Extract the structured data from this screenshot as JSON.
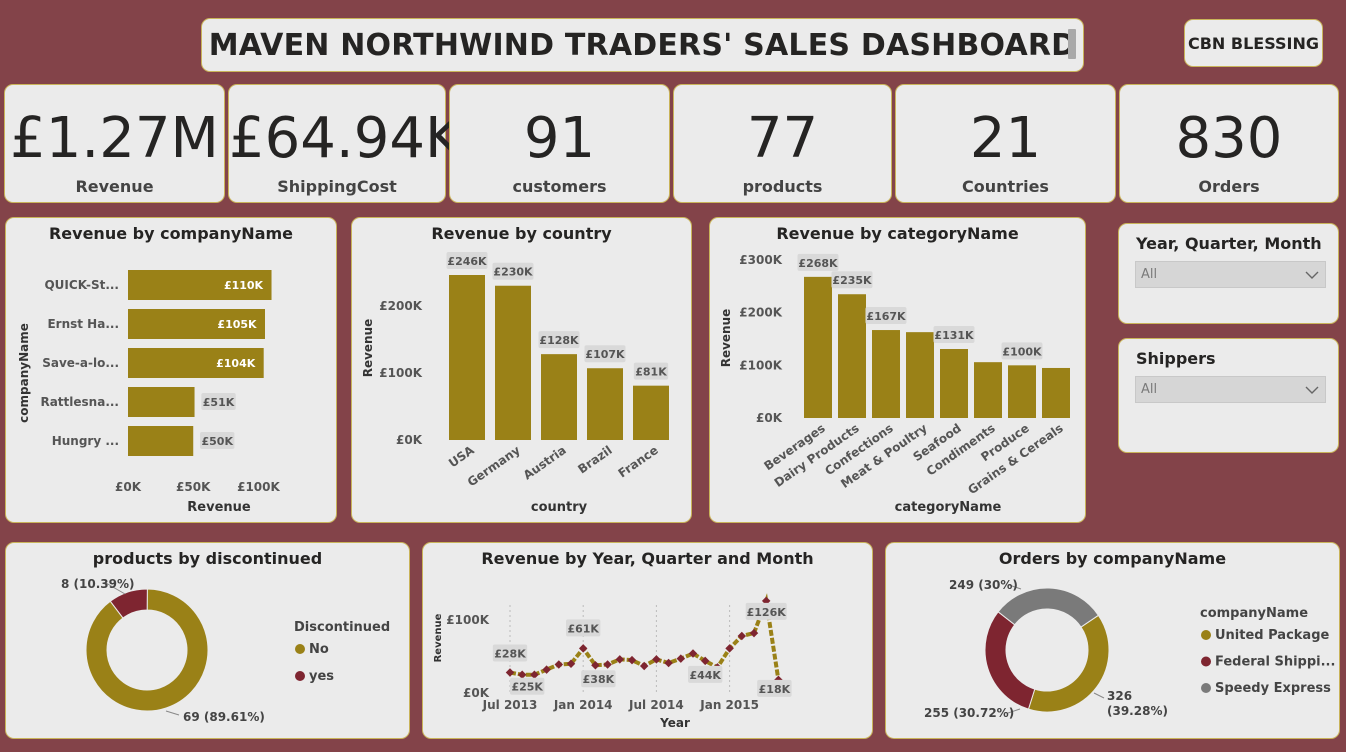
{
  "header": {
    "title": "MAVEN NORTHWIND TRADERS' SALES DASHBOARD",
    "author": "CBN BLESSING"
  },
  "kpis": [
    {
      "value": "£1.27M",
      "label": "Revenue"
    },
    {
      "value": "£64.94K",
      "label": "ShippingCost"
    },
    {
      "value": "91",
      "label": "customers"
    },
    {
      "value": "77",
      "label": "products"
    },
    {
      "value": "21",
      "label": "Countries"
    },
    {
      "value": "830",
      "label": "Orders"
    }
  ],
  "slicers": [
    {
      "title": "Year, Quarter, Month",
      "value": "All"
    },
    {
      "title": "Shippers",
      "value": "All"
    }
  ],
  "colors": {
    "gold": "#9a8117",
    "maroon": "#7e2530",
    "grey": "#7a7a7a",
    "background": "#834349",
    "card": "#ebebeb"
  },
  "chart_data": [
    {
      "type": "bar",
      "orientation": "horizontal",
      "title": "Revenue by companyName",
      "xlabel": "Revenue",
      "ylabel": "companyName",
      "categories": [
        "QUICK-St...",
        "Ernst Ha...",
        "Save-a-lo...",
        "Rattlesna...",
        "Hungry ..."
      ],
      "values": [
        110,
        105,
        104,
        51,
        50
      ],
      "data_labels": [
        "£110K",
        "£105K",
        "£104K",
        "£51K",
        "£50K"
      ],
      "ticks": [
        "£0K",
        "£50K",
        "£100K"
      ],
      "xlim": [
        0,
        110
      ]
    },
    {
      "type": "bar",
      "title": "Revenue by country",
      "xlabel": "country",
      "ylabel": "Revenue",
      "categories": [
        "USA",
        "Germany",
        "Austria",
        "Brazil",
        "France"
      ],
      "values": [
        246,
        230,
        128,
        107,
        81
      ],
      "data_labels": [
        "£246K",
        "£230K",
        "£128K",
        "£107K",
        "£81K"
      ],
      "ticks": [
        "£0K",
        "£100K",
        "£200K"
      ],
      "ylim": [
        0,
        246
      ]
    },
    {
      "type": "bar",
      "title": "Revenue by categoryName",
      "xlabel": "categoryName",
      "ylabel": "Revenue",
      "categories": [
        "Beverages",
        "Dairy Products",
        "Confections",
        "Meat & Poultry",
        "Seafood",
        "Condiments",
        "Produce",
        "Grains & Cereals"
      ],
      "values": [
        268,
        235,
        167,
        163,
        131,
        106,
        100,
        95
      ],
      "data_labels": [
        "£268K",
        "£235K",
        "£167K",
        "",
        "£131K",
        "",
        "£100K",
        ""
      ],
      "ticks": [
        "£0K",
        "£100K",
        "£200K",
        "£300K"
      ],
      "ylim": [
        0,
        300
      ]
    },
    {
      "type": "pie",
      "title": "products by discontinued",
      "legend_title": "Discontinued",
      "labels": [
        "No",
        "yes"
      ],
      "values": [
        69,
        8
      ],
      "data_labels": [
        "69 (89.61%)",
        "8 (10.39%)"
      ]
    },
    {
      "type": "line",
      "title": "Revenue by Year, Quarter and Month",
      "xlabel": "Year",
      "ylabel": "Revenue",
      "x": [
        "Jul 2013",
        "Aug 2013",
        "Sep 2013",
        "Oct 2013",
        "Nov 2013",
        "Dec 2013",
        "Jan 2014",
        "Feb 2014",
        "Mar 2014",
        "Apr 2014",
        "May 2014",
        "Jun 2014",
        "Jul 2014",
        "Aug 2014",
        "Sep 2014",
        "Oct 2014",
        "Nov 2014",
        "Dec 2014",
        "Jan 2015",
        "Feb 2015",
        "Mar 2015",
        "Apr 2015",
        "May 2015"
      ],
      "values": [
        28,
        25,
        25,
        32,
        39,
        40,
        61,
        38,
        39,
        46,
        45,
        37,
        46,
        41,
        47,
        54,
        44,
        35,
        61,
        78,
        82,
        126,
        18
      ],
      "data_labels": [
        "£28K",
        "£25K",
        "",
        "",
        "",
        "",
        "£61K",
        "£38K",
        "",
        "",
        "",
        "",
        "",
        "",
        "",
        "",
        "£44K",
        "",
        "",
        "",
        "",
        "£126K",
        "£18K"
      ],
      "x_ticks": [
        "Jul 2013",
        "Jan 2014",
        "Jul 2014",
        "Jan 2015"
      ],
      "ticks": [
        "£0K",
        "£100K"
      ],
      "ylim": [
        0,
        130
      ]
    },
    {
      "type": "pie",
      "title": "Orders by companyName",
      "legend_title": "companyName",
      "labels": [
        "United Package",
        "Federal Shippi...",
        "Speedy Express"
      ],
      "values": [
        326,
        255,
        249
      ],
      "data_labels": [
        "326\n(39.28%)",
        "255 (30.72%)",
        "249 (30%)"
      ]
    }
  ]
}
